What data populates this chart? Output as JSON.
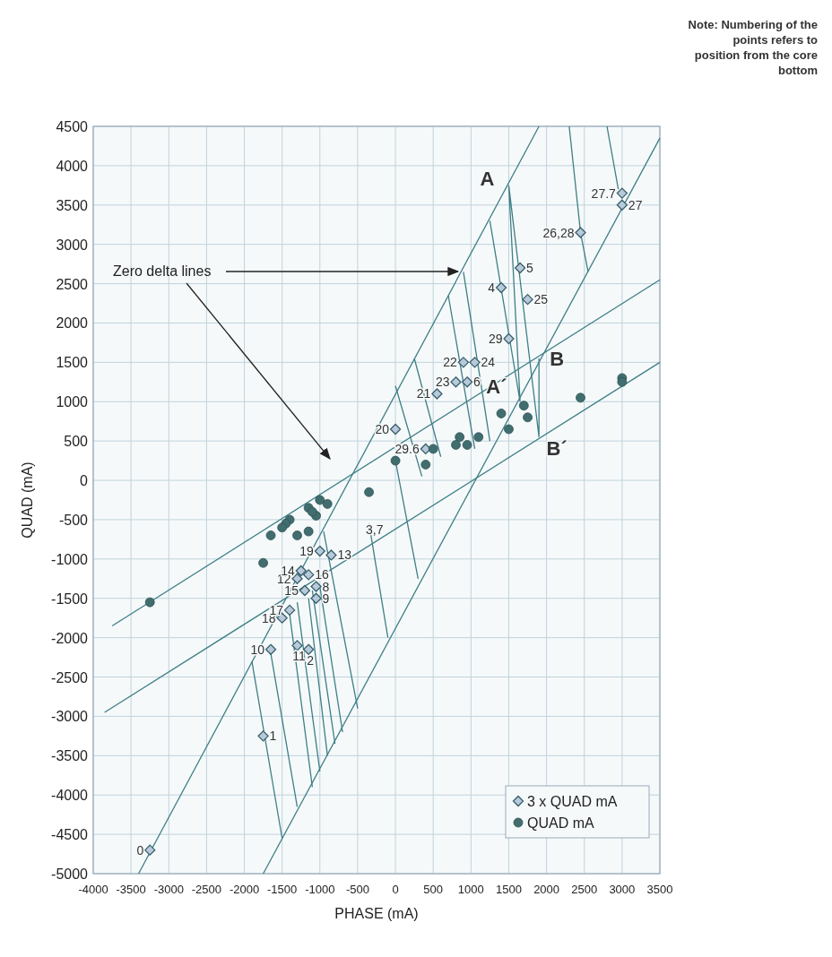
{
  "chart_data": {
    "type": "scatter",
    "xlabel": "PHASE (mA)",
    "ylabel": "QUAD (mA)",
    "xlim": [
      -4000,
      3500
    ],
    "ylim": [
      -5000,
      4500
    ],
    "xticks": [
      -4000,
      -3500,
      -3000,
      -2500,
      -2000,
      -1500,
      -1000,
      -500,
      0,
      500,
      1000,
      1500,
      2000,
      2500,
      3000,
      3500
    ],
    "yticks": [
      -5000,
      -4500,
      -4000,
      -3500,
      -3000,
      -2500,
      -2000,
      -1500,
      -1000,
      -500,
      0,
      500,
      1000,
      1500,
      2000,
      2500,
      3000,
      3500,
      4000,
      4500
    ],
    "grid": true,
    "legend": "bottom right",
    "annotations": [
      "Note: Numbering of the points refers to position from the core bottom",
      "Zero delta lines",
      "3,7",
      {
        "text": "A",
        "x": 1500,
        "y": 3750
      },
      {
        "text": "A´",
        "x": 1600,
        "y": 1100
      },
      {
        "text": "B",
        "x": 1900,
        "y": 1550
      },
      {
        "text": "B´",
        "x": 1900,
        "y": 550
      },
      {
        "text": "0",
        "x": -3250,
        "y": -4700
      },
      {
        "text": "1",
        "x": -1750,
        "y": -3250
      },
      {
        "text": "10",
        "x": -1650,
        "y": -2150
      },
      {
        "text": "11",
        "x": -1300,
        "y": -2100
      },
      {
        "text": "2",
        "x": -1150,
        "y": -2150
      },
      {
        "text": "18",
        "x": -1500,
        "y": -1750
      },
      {
        "text": "17",
        "x": -1400,
        "y": -1650
      },
      {
        "text": "9",
        "x": -1050,
        "y": -1500
      },
      {
        "text": "15",
        "x": -1200,
        "y": -1400
      },
      {
        "text": "8",
        "x": -1050,
        "y": -1350
      },
      {
        "text": "12",
        "x": -1300,
        "y": -1250
      },
      {
        "text": "16",
        "x": -1150,
        "y": -1200
      },
      {
        "text": "14",
        "x": -1250,
        "y": -1150
      },
      {
        "text": "13",
        "x": -850,
        "y": -950
      },
      {
        "text": "19",
        "x": -1000,
        "y": -900
      },
      {
        "text": "20",
        "x": 0,
        "y": 650
      },
      {
        "text": "29.6",
        "x": 400,
        "y": 400
      },
      {
        "text": "21",
        "x": 550,
        "y": 1100
      },
      {
        "text": "23",
        "x": 800,
        "y": 1250
      },
      {
        "text": "6",
        "x": 950,
        "y": 1250
      },
      {
        "text": "22",
        "x": 900,
        "y": 1500
      },
      {
        "text": "24",
        "x": 1050,
        "y": 1500
      },
      {
        "text": "29",
        "x": 1500,
        "y": 1800
      },
      {
        "text": "4",
        "x": 1400,
        "y": 2450
      },
      {
        "text": "5",
        "x": 1650,
        "y": 2700
      },
      {
        "text": "25",
        "x": 1750,
        "y": 2300
      },
      {
        "text": "26,28",
        "x": 2450,
        "y": 3150
      },
      {
        "text": "27.7",
        "x": 3000,
        "y": 3650
      },
      {
        "text": "27",
        "x": 3000,
        "y": 3500
      }
    ],
    "series": [
      {
        "name": "3 x QUAD mA",
        "marker": "diamond",
        "color": "#b9c9d9",
        "x": [
          -3250,
          -1750,
          -1650,
          -1300,
          -1150,
          -1500,
          -1400,
          -1050,
          -1200,
          -1050,
          -1300,
          -1150,
          -1250,
          -850,
          -1000,
          0,
          400,
          550,
          800,
          950,
          900,
          1050,
          1500,
          1400,
          1650,
          1750,
          2450,
          3000,
          3000
        ],
        "values": [
          -4700,
          -3250,
          -2150,
          -2100,
          -2150,
          -1750,
          -1650,
          -1500,
          -1400,
          -1350,
          -1250,
          -1200,
          -1150,
          -950,
          -900,
          650,
          400,
          1100,
          1250,
          1250,
          1500,
          1500,
          1800,
          2450,
          2700,
          2300,
          3150,
          3650,
          3500
        ]
      },
      {
        "name": "QUAD mA",
        "marker": "circle",
        "color": "#416d6e",
        "x": [
          3000,
          3000,
          2450,
          1700,
          1750,
          1400,
          1500,
          1100,
          850,
          800,
          950,
          500,
          0,
          400,
          -350,
          -900,
          -1000,
          -1150,
          -1050,
          -1100,
          -1400,
          -1450,
          -1500,
          -1650,
          -1300,
          -1150,
          -1750,
          -3250
        ],
        "values": [
          1300,
          1250,
          1050,
          950,
          800,
          850,
          650,
          550,
          550,
          450,
          450,
          400,
          250,
          200,
          -150,
          -300,
          -250,
          -350,
          -450,
          -400,
          -500,
          -550,
          -600,
          -700,
          -700,
          -650,
          -1050,
          -1550
        ]
      },
      {
        "type": "line",
        "color": "#3d7f86",
        "x": [
          -3400,
          1900
        ],
        "values": [
          -5000,
          4500
        ]
      },
      {
        "type": "line",
        "color": "#3d7f86",
        "x": [
          -1750,
          3500
        ],
        "values": [
          -5000,
          4350
        ]
      },
      {
        "type": "line",
        "color": "#3d7f86",
        "x": [
          -3750,
          3500
        ],
        "values": [
          -1850,
          2550
        ]
      },
      {
        "type": "line",
        "color": "#3d7f86",
        "x": [
          -3850,
          3500
        ],
        "values": [
          -2950,
          1500
        ]
      },
      {
        "type": "line",
        "color": "#3d7f86",
        "x": [
          2300,
          2450,
          2550,
          null,
          2800,
          2950,
          null,
          1500,
          1900,
          null,
          1500,
          1650,
          null,
          1900,
          1900,
          null,
          1250,
          1650,
          null,
          900,
          1250,
          null,
          700,
          1050,
          null,
          250,
          600,
          null,
          0,
          350,
          null,
          -1900,
          -1500,
          null,
          -1650,
          -1300,
          null,
          -1400,
          -1100,
          null,
          -1300,
          -1000,
          null,
          -1150,
          -900,
          null,
          -1100,
          -800,
          null,
          -1000,
          -700,
          null,
          -950,
          -500,
          null,
          -350,
          -100,
          null,
          0,
          300
        ],
        "values": [
          4500,
          3150,
          2650,
          null,
          4500,
          3700,
          null,
          3750,
          550,
          null,
          3750,
          1000,
          null,
          1550,
          550,
          null,
          3300,
          1000,
          null,
          2650,
          500,
          null,
          2350,
          400,
          null,
          1550,
          300,
          null,
          1200,
          50,
          null,
          -2300,
          -4550,
          null,
          -2200,
          -4150,
          null,
          -1700,
          -3900,
          null,
          -1550,
          -3700,
          null,
          -1500,
          -3500,
          null,
          -1400,
          -3350,
          null,
          -1350,
          -3200,
          null,
          -650,
          -2900,
          null,
          -550,
          -2000,
          null,
          250,
          -1250
        ]
      }
    ]
  }
}
